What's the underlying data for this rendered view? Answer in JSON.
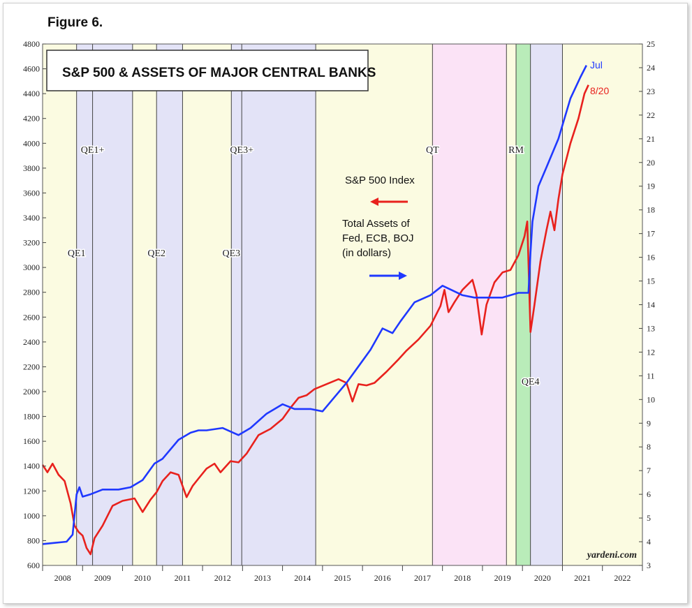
{
  "figure_label": "Figure 6.",
  "chart_data": {
    "type": "line",
    "title": "S&P 500 & ASSETS OF MAJOR CENTRAL BANKS",
    "source": "yardeni.com",
    "x_range": [
      2008.0,
      2023.0
    ],
    "x_tick_labels": [
      "2008",
      "2009",
      "2010",
      "2011",
      "2012",
      "2013",
      "2014",
      "2015",
      "2016",
      "2017",
      "2018",
      "2019",
      "2020",
      "2021",
      "2022"
    ],
    "y_left": {
      "min": 600,
      "max": 4800,
      "ticks": [
        600,
        800,
        1000,
        1200,
        1400,
        1600,
        1800,
        2000,
        2200,
        2400,
        2600,
        2800,
        3000,
        3200,
        3400,
        3600,
        3800,
        4000,
        4200,
        4400,
        4600,
        4800
      ]
    },
    "y_right": {
      "min": 3,
      "max": 25,
      "ticks": [
        3,
        4,
        5,
        6,
        7,
        8,
        9,
        10,
        11,
        12,
        13,
        14,
        15,
        16,
        17,
        18,
        19,
        20,
        21,
        22,
        23,
        24,
        25
      ]
    },
    "legend": {
      "sp500": "S&P 500 Index",
      "assets_line1": "Total Assets of",
      "assets_line2": "Fed, ECB, BOJ",
      "assets_line3": "(in dollars)"
    },
    "shaded_periods": [
      {
        "label": "QE1",
        "start": 2008.85,
        "end": 2009.25,
        "color": "#e3e3f7"
      },
      {
        "label": "QE1+",
        "start": 2009.25,
        "end": 2010.25,
        "color": "#e3e3f7"
      },
      {
        "label": "QE2",
        "start": 2010.85,
        "end": 2011.5,
        "color": "#e3e3f7"
      },
      {
        "label": "QE3",
        "start": 2012.72,
        "end": 2012.98,
        "color": "#e3e3f7"
      },
      {
        "label": "QE3+",
        "start": 2012.98,
        "end": 2014.83,
        "color": "#e3e3f7"
      },
      {
        "label": "QT",
        "start": 2017.75,
        "end": 2019.6,
        "color": "#fbe3f6"
      },
      {
        "label": "RM",
        "start": 2019.84,
        "end": 2020.2,
        "color": "#b9ecb9"
      },
      {
        "label": "QE4",
        "start": 2020.2,
        "end": 2021.0,
        "color": "#e3e3f7"
      }
    ],
    "series": [
      {
        "name": "S&P 500 Index",
        "axis": "left",
        "color": "#e8211d",
        "end_label": "8/20",
        "x": [
          2008.0,
          2008.12,
          2008.25,
          2008.4,
          2008.55,
          2008.7,
          2008.8,
          2008.9,
          2009.0,
          2009.1,
          2009.2,
          2009.3,
          2009.5,
          2009.75,
          2010.0,
          2010.3,
          2010.5,
          2010.7,
          2010.85,
          2011.0,
          2011.2,
          2011.4,
          2011.6,
          2011.75,
          2011.9,
          2012.1,
          2012.3,
          2012.45,
          2012.7,
          2012.9,
          2013.1,
          2013.4,
          2013.7,
          2014.0,
          2014.2,
          2014.4,
          2014.6,
          2014.8,
          2015.1,
          2015.4,
          2015.6,
          2015.75,
          2015.9,
          2016.1,
          2016.3,
          2016.6,
          2016.9,
          2017.1,
          2017.4,
          2017.7,
          2017.95,
          2018.05,
          2018.15,
          2018.3,
          2018.5,
          2018.75,
          2018.85,
          2018.98,
          2019.1,
          2019.3,
          2019.5,
          2019.7,
          2019.9,
          2020.05,
          2020.12,
          2020.2,
          2020.3,
          2020.45,
          2020.6,
          2020.7,
          2020.8,
          2020.9,
          2021.0,
          2021.2,
          2021.4,
          2021.55,
          2021.65
        ],
        "values": [
          1410,
          1350,
          1420,
          1330,
          1280,
          1100,
          920,
          870,
          840,
          740,
          690,
          820,
          920,
          1080,
          1120,
          1140,
          1030,
          1130,
          1190,
          1280,
          1350,
          1330,
          1150,
          1240,
          1300,
          1380,
          1420,
          1350,
          1440,
          1430,
          1500,
          1650,
          1700,
          1780,
          1870,
          1950,
          1970,
          2020,
          2060,
          2100,
          2070,
          1920,
          2060,
          2050,
          2070,
          2160,
          2260,
          2330,
          2420,
          2530,
          2690,
          2820,
          2640,
          2720,
          2820,
          2900,
          2780,
          2460,
          2700,
          2880,
          2960,
          2980,
          3100,
          3250,
          3370,
          2480,
          2700,
          3050,
          3300,
          3450,
          3300,
          3550,
          3750,
          4000,
          4200,
          4400,
          4470
        ]
      },
      {
        "name": "Total Assets of Fed, ECB, BOJ (in dollars)",
        "axis": "right",
        "color": "#1f38ff",
        "end_label": "Jul",
        "x": [
          2008.0,
          2008.3,
          2008.6,
          2008.75,
          2008.85,
          2008.92,
          2009.0,
          2009.2,
          2009.5,
          2009.9,
          2010.2,
          2010.5,
          2010.8,
          2011.0,
          2011.4,
          2011.7,
          2011.9,
          2012.1,
          2012.5,
          2012.9,
          2013.2,
          2013.6,
          2014.0,
          2014.3,
          2014.7,
          2015.0,
          2015.3,
          2015.6,
          2015.9,
          2016.2,
          2016.5,
          2016.75,
          2016.95,
          2017.3,
          2017.7,
          2018.0,
          2018.25,
          2018.5,
          2018.8,
          2019.0,
          2019.5,
          2019.9,
          2020.05,
          2020.15,
          2020.2,
          2020.25,
          2020.4,
          2020.6,
          2020.9,
          2021.2,
          2021.45,
          2021.6
        ],
        "values": [
          3.9,
          3.95,
          4.0,
          4.3,
          6.0,
          6.3,
          5.9,
          6.0,
          6.2,
          6.2,
          6.3,
          6.6,
          7.3,
          7.5,
          8.3,
          8.6,
          8.7,
          8.7,
          8.8,
          8.5,
          8.8,
          9.4,
          9.8,
          9.6,
          9.6,
          9.5,
          10.1,
          10.7,
          11.4,
          12.1,
          13.0,
          12.8,
          13.3,
          14.1,
          14.4,
          14.8,
          14.6,
          14.4,
          14.3,
          14.3,
          14.3,
          14.5,
          14.5,
          14.5,
          16.2,
          17.5,
          19.0,
          19.8,
          21.0,
          22.7,
          23.6,
          24.1
        ]
      }
    ]
  }
}
